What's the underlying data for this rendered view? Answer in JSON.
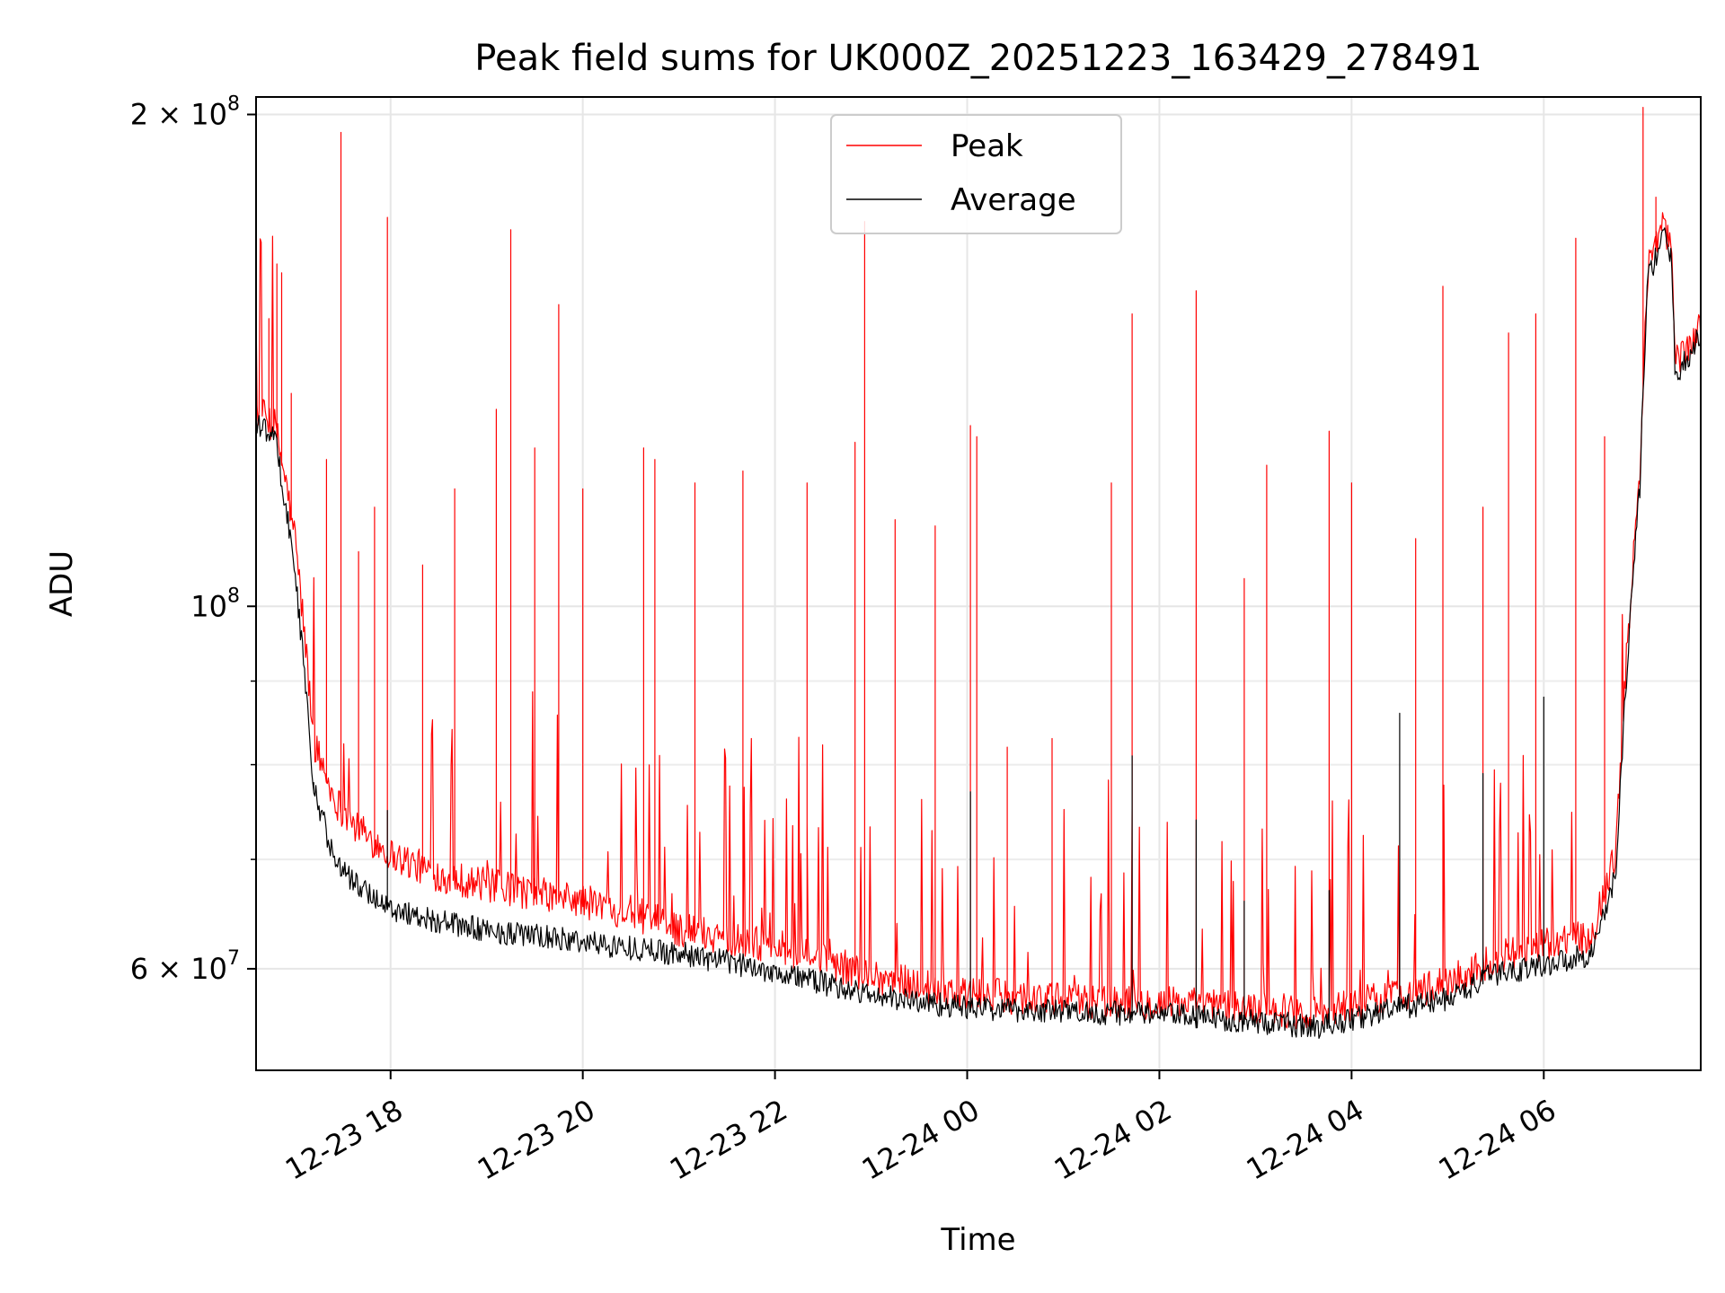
{
  "chart_data": {
    "type": "line",
    "title": "Peak field sums for UK000Z_20251223_163429_278491",
    "xlabel": "Time",
    "ylabel": "ADU",
    "y_scale": "log",
    "x_range": [
      "2025-12-23 16:36",
      "2025-12-24 07:38"
    ],
    "ylim": [
      52000000,
      205000000
    ],
    "grid": true,
    "legend_position": "upper center",
    "x_ticks": [
      {
        "value": "2025-12-23 18:00",
        "label": "12-23 18"
      },
      {
        "value": "2025-12-23 20:00",
        "label": "12-23 20"
      },
      {
        "value": "2025-12-23 22:00",
        "label": "12-23 22"
      },
      {
        "value": "2025-12-24 00:00",
        "label": "12-24 00"
      },
      {
        "value": "2025-12-24 02:00",
        "label": "12-24 02"
      },
      {
        "value": "2025-12-24 04:00",
        "label": "12-24 04"
      },
      {
        "value": "2025-12-24 06:00",
        "label": "12-24 06"
      }
    ],
    "y_ticks": [
      {
        "value": 200000000,
        "mant": "2",
        "sep": " × 10",
        "exp": "8"
      },
      {
        "value": 100000000,
        "mant": "",
        "sep": "10",
        "exp": "8"
      },
      {
        "value": 60000000,
        "mant": "6",
        "sep": " × 10",
        "exp": "7"
      }
    ],
    "y_minor_ticks": [
      70000000,
      80000000,
      90000000
    ],
    "series": [
      {
        "name": "Peak",
        "color": "#ff0000",
        "baseline": [
          [
            "2025-12-23 16:36",
            131000000
          ],
          [
            "2025-12-23 16:48",
            128000000
          ],
          [
            "2025-12-23 17:00",
            110000000
          ],
          [
            "2025-12-23 17:12",
            82000000
          ],
          [
            "2025-12-23 17:24",
            76000000
          ],
          [
            "2025-12-23 17:36",
            73000000
          ],
          [
            "2025-12-23 18:00",
            70000000
          ],
          [
            "2025-12-23 18:30",
            68000000
          ],
          [
            "2025-12-23 19:00",
            67000000
          ],
          [
            "2025-12-23 20:00",
            65500000
          ],
          [
            "2025-12-23 20:30",
            64500000
          ],
          [
            "2025-12-23 21:00",
            63000000
          ],
          [
            "2025-12-23 22:00",
            61500000
          ],
          [
            "2025-12-23 23:00",
            59000000
          ],
          [
            "2025-12-24 00:00",
            57500000
          ],
          [
            "2025-12-24 01:00",
            57000000
          ],
          [
            "2025-12-24 02:00",
            56800000
          ],
          [
            "2025-12-24 03:00",
            56300000
          ],
          [
            "2025-12-24 03:40",
            56000000
          ],
          [
            "2025-12-24 04:30",
            57500000
          ],
          [
            "2025-12-24 05:00",
            58300000
          ],
          [
            "2025-12-24 05:30",
            60500000
          ],
          [
            "2025-12-24 06:00",
            61500000
          ],
          [
            "2025-12-24 06:30",
            62500000
          ],
          [
            "2025-12-24 06:45",
            70000000
          ],
          [
            "2025-12-24 07:00",
            120000000
          ],
          [
            "2025-12-24 07:05",
            160000000
          ],
          [
            "2025-12-24 07:15",
            170000000
          ],
          [
            "2025-12-24 07:20",
            163000000
          ],
          [
            "2025-12-24 07:22",
            140000000
          ],
          [
            "2025-12-24 07:30",
            143000000
          ],
          [
            "2025-12-24 07:38",
            148000000
          ]
        ],
        "spikes": [
          [
            "2025-12-23 16:44",
            150000000
          ],
          [
            "2025-12-23 16:49",
            162000000
          ],
          [
            "2025-12-23 16:52",
            160000000
          ],
          [
            "2025-12-23 16:58",
            135000000
          ],
          [
            "2025-12-23 17:20",
            123000000
          ],
          [
            "2025-12-23 17:29",
            195000000
          ],
          [
            "2025-12-23 17:40",
            108000000
          ],
          [
            "2025-12-23 17:50",
            115000000
          ],
          [
            "2025-12-23 17:58",
            173000000
          ],
          [
            "2025-12-23 18:20",
            106000000
          ],
          [
            "2025-12-23 18:40",
            118000000
          ],
          [
            "2025-12-23 19:06",
            132000000
          ],
          [
            "2025-12-23 19:15",
            170000000
          ],
          [
            "2025-12-23 19:30",
            125000000
          ],
          [
            "2025-12-23 19:45",
            153000000
          ],
          [
            "2025-12-23 20:00",
            118000000
          ],
          [
            "2025-12-23 20:38",
            125000000
          ],
          [
            "2025-12-23 20:45",
            123000000
          ],
          [
            "2025-12-23 21:10",
            119000000
          ],
          [
            "2025-12-23 21:40",
            121000000
          ],
          [
            "2025-12-23 22:20",
            119000000
          ],
          [
            "2025-12-23 22:50",
            126000000
          ],
          [
            "2025-12-23 22:56",
            172000000
          ],
          [
            "2025-12-23 23:15",
            113000000
          ],
          [
            "2025-12-23 23:40",
            112000000
          ],
          [
            "2025-12-24 00:02",
            129000000
          ],
          [
            "2025-12-24 00:06",
            127000000
          ],
          [
            "2025-12-24 00:25",
            82000000
          ],
          [
            "2025-12-24 00:53",
            83000000
          ],
          [
            "2025-12-24 01:30",
            119000000
          ],
          [
            "2025-12-24 01:43",
            151000000
          ],
          [
            "2025-12-24 02:23",
            156000000
          ],
          [
            "2025-12-24 02:53",
            104000000
          ],
          [
            "2025-12-24 03:07",
            122000000
          ],
          [
            "2025-12-24 03:46",
            128000000
          ],
          [
            "2025-12-24 04:00",
            119000000
          ],
          [
            "2025-12-24 04:40",
            110000000
          ],
          [
            "2025-12-24 04:57",
            157000000
          ],
          [
            "2025-12-24 05:22",
            115000000
          ],
          [
            "2025-12-24 05:38",
            147000000
          ],
          [
            "2025-12-24 05:55",
            151000000
          ],
          [
            "2025-12-24 06:20",
            168000000
          ],
          [
            "2025-12-24 06:38",
            127000000
          ],
          [
            "2025-12-24 07:02",
            202000000
          ],
          [
            "2025-12-24 07:10",
            178000000
          ]
        ]
      },
      {
        "name": "Average",
        "color": "#000000",
        "baseline": [
          [
            "2025-12-23 16:36",
            129000000
          ],
          [
            "2025-12-23 16:48",
            126000000
          ],
          [
            "2025-12-23 17:00",
            105000000
          ],
          [
            "2025-12-23 17:12",
            77000000
          ],
          [
            "2025-12-23 17:24",
            70000000
          ],
          [
            "2025-12-23 17:36",
            67500000
          ],
          [
            "2025-12-23 18:00",
            65000000
          ],
          [
            "2025-12-23 18:30",
            63800000
          ],
          [
            "2025-12-23 19:00",
            63000000
          ],
          [
            "2025-12-23 20:00",
            62000000
          ],
          [
            "2025-12-23 20:30",
            61500000
          ],
          [
            "2025-12-23 21:00",
            61000000
          ],
          [
            "2025-12-23 22:00",
            59500000
          ],
          [
            "2025-12-23 23:00",
            57500000
          ],
          [
            "2025-12-24 00:00",
            56500000
          ],
          [
            "2025-12-24 01:00",
            56200000
          ],
          [
            "2025-12-24 02:00",
            56000000
          ],
          [
            "2025-12-24 03:00",
            55400000
          ],
          [
            "2025-12-24 03:40",
            55000000
          ],
          [
            "2025-12-24 04:30",
            56500000
          ],
          [
            "2025-12-24 05:00",
            57200000
          ],
          [
            "2025-12-24 05:30",
            59300000
          ],
          [
            "2025-12-24 06:00",
            60000000
          ],
          [
            "2025-12-24 06:30",
            61000000
          ],
          [
            "2025-12-24 06:45",
            68000000
          ],
          [
            "2025-12-24 07:00",
            118000000
          ],
          [
            "2025-12-24 07:05",
            158000000
          ],
          [
            "2025-12-24 07:15",
            168000000
          ],
          [
            "2025-12-24 07:20",
            161000000
          ],
          [
            "2025-12-24 07:22",
            138000000
          ],
          [
            "2025-12-24 07:30",
            141000000
          ],
          [
            "2025-12-24 07:38",
            146000000
          ]
        ],
        "spikes": [
          [
            "2025-12-23 17:12",
            78000000
          ],
          [
            "2025-12-23 17:58",
            75000000
          ],
          [
            "2025-12-24 00:02",
            77000000
          ],
          [
            "2025-12-24 01:43",
            81000000
          ],
          [
            "2025-12-24 02:23",
            74000000
          ],
          [
            "2025-12-24 02:53",
            66000000
          ],
          [
            "2025-12-24 03:46",
            67000000
          ],
          [
            "2025-12-24 04:30",
            86000000
          ],
          [
            "2025-12-24 05:22",
            79000000
          ],
          [
            "2025-12-24 06:00",
            88000000
          ]
        ]
      }
    ]
  }
}
